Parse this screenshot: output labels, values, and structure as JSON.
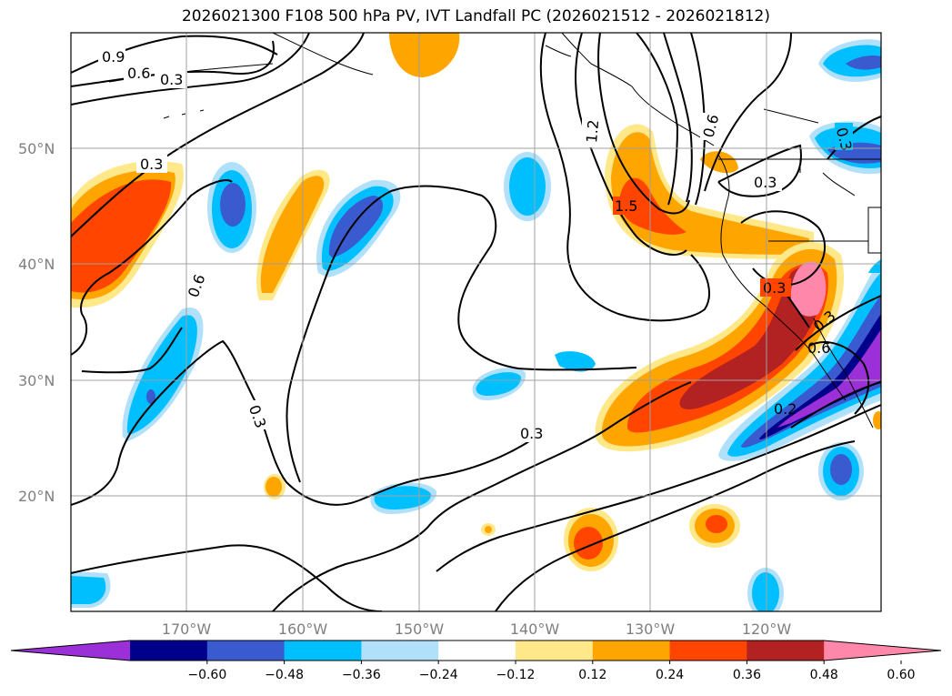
{
  "title": "2026021300 F108 500 hPa PV, IVT Landfall PC (2026021512 - 2026021812)",
  "lat_labels": [
    "50°N",
    "40°N",
    "30°N",
    "20°N"
  ],
  "lon_labels": [
    "170°W",
    "160°W",
    "150°W",
    "140°W",
    "130°W",
    "120°W"
  ],
  "colorbar": {
    "colors": [
      "#9b30d8",
      "#00008b",
      "#3a5bd0",
      "#00bfff",
      "#b0e0fa",
      "#ffffff",
      "#ffe88a",
      "#ffa500",
      "#ff4500",
      "#b22222",
      "#ff88aa"
    ],
    "tick_labels": [
      "−0.60",
      "−0.48",
      "−0.36",
      "−0.24",
      "−0.12",
      "0.12",
      "0.24",
      "0.36",
      "0.48",
      "0.60"
    ]
  },
  "contour_labels": [
    "0.9",
    "0.6",
    "0.3",
    "0.3",
    "0.6",
    "0.3",
    "0.3",
    "1.2",
    "1.5",
    "0.6",
    "0.3",
    "0.3",
    "0.3",
    "0.6",
    "0.3",
    "0.2"
  ]
}
